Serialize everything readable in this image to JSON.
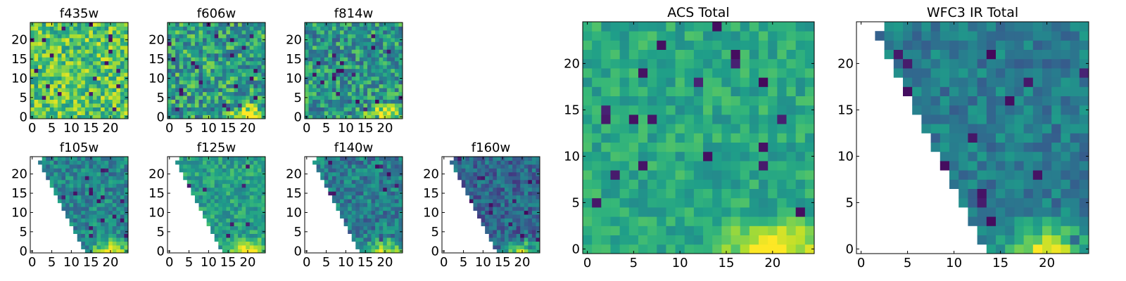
{
  "figure": {
    "background": "#ffffff"
  },
  "colormap": {
    "name": "viridis",
    "stops": [
      "#440154",
      "#482878",
      "#3e4989",
      "#31688e",
      "#26828e",
      "#1f9e89",
      "#35b779",
      "#6ece58",
      "#b5de2b",
      "#fde725"
    ]
  },
  "chart_data": [
    {
      "id": "f435w",
      "type": "heatmap",
      "title": "f435w",
      "x_ticks": [
        "0",
        "5",
        "10",
        "15",
        "20"
      ],
      "y_ticks": [
        "0",
        "5",
        "10",
        "15",
        "20"
      ],
      "xlim": [
        0,
        25
      ],
      "ylim": [
        0,
        25
      ],
      "mask": "none",
      "hot_corner": "none",
      "base_level": 0.72,
      "noise": 0.24
    },
    {
      "id": "f606w",
      "type": "heatmap",
      "title": "f606w",
      "x_ticks": [
        "0",
        "5",
        "10",
        "15",
        "20"
      ],
      "y_ticks": [
        "0",
        "5",
        "10",
        "15",
        "20"
      ],
      "xlim": [
        0,
        25
      ],
      "ylim": [
        0,
        25
      ],
      "mask": "none",
      "hot_corner": "bottom-right",
      "base_level": 0.56,
      "noise": 0.27
    },
    {
      "id": "f814w",
      "type": "heatmap",
      "title": "f814w",
      "x_ticks": [
        "0",
        "5",
        "10",
        "15",
        "20"
      ],
      "y_ticks": [
        "0",
        "5",
        "10",
        "15",
        "20"
      ],
      "xlim": [
        0,
        25
      ],
      "ylim": [
        0,
        25
      ],
      "mask": "none",
      "hot_corner": "bottom-right",
      "base_level": 0.53,
      "noise": 0.25
    },
    {
      "id": "f105w",
      "type": "heatmap",
      "title": "f105w",
      "x_ticks": [
        "0",
        "5",
        "10",
        "15",
        "20"
      ],
      "y_ticks": [
        "0",
        "5",
        "10",
        "15",
        "20"
      ],
      "xlim": [
        0,
        25
      ],
      "ylim": [
        0,
        25
      ],
      "mask": "wedge-left",
      "hot_corner": "bottom-right",
      "base_level": 0.46,
      "noise": 0.17
    },
    {
      "id": "f125w",
      "type": "heatmap",
      "title": "f125w",
      "x_ticks": [
        "0",
        "5",
        "10",
        "15",
        "20"
      ],
      "y_ticks": [
        "0",
        "5",
        "10",
        "15",
        "20"
      ],
      "xlim": [
        0,
        25
      ],
      "ylim": [
        0,
        25
      ],
      "mask": "wedge-left",
      "hot_corner": "bottom-right",
      "base_level": 0.57,
      "noise": 0.15
    },
    {
      "id": "f140w",
      "type": "heatmap",
      "title": "f140w",
      "x_ticks": [
        "0",
        "5",
        "10",
        "15",
        "20"
      ],
      "y_ticks": [
        "0",
        "5",
        "10",
        "15",
        "20"
      ],
      "xlim": [
        0,
        25
      ],
      "ylim": [
        0,
        25
      ],
      "mask": "wedge-left",
      "hot_corner": "bottom-right",
      "base_level": 0.42,
      "noise": 0.18
    },
    {
      "id": "f160w",
      "type": "heatmap",
      "title": "f160w",
      "x_ticks": [
        "0",
        "5",
        "10",
        "15",
        "20"
      ],
      "y_ticks": [
        "0",
        "5",
        "10",
        "15",
        "20"
      ],
      "xlim": [
        0,
        25
      ],
      "ylim": [
        0,
        25
      ],
      "mask": "wedge-left",
      "hot_corner": "bottom-right",
      "base_level": 0.33,
      "noise": 0.17
    },
    {
      "id": "acs-total",
      "type": "heatmap",
      "title": "ACS Total",
      "x_ticks": [
        "0",
        "5",
        "10",
        "15",
        "20"
      ],
      "y_ticks": [
        "0",
        "5",
        "10",
        "15",
        "20"
      ],
      "xlim": [
        0,
        25
      ],
      "ylim": [
        0,
        25
      ],
      "mask": "none",
      "hot_corner": "bottom-right",
      "base_level": 0.6,
      "noise": 0.12
    },
    {
      "id": "wfc3-ir-total",
      "type": "heatmap",
      "title": "WFC3 IR Total",
      "x_ticks": [
        "0",
        "5",
        "10",
        "15",
        "20"
      ],
      "y_ticks": [
        "0",
        "5",
        "10",
        "15",
        "20"
      ],
      "xlim": [
        0,
        25
      ],
      "ylim": [
        0,
        25
      ],
      "mask": "wedge-left",
      "hot_corner": "bottom-right",
      "base_level": 0.42,
      "noise": 0.13
    }
  ]
}
